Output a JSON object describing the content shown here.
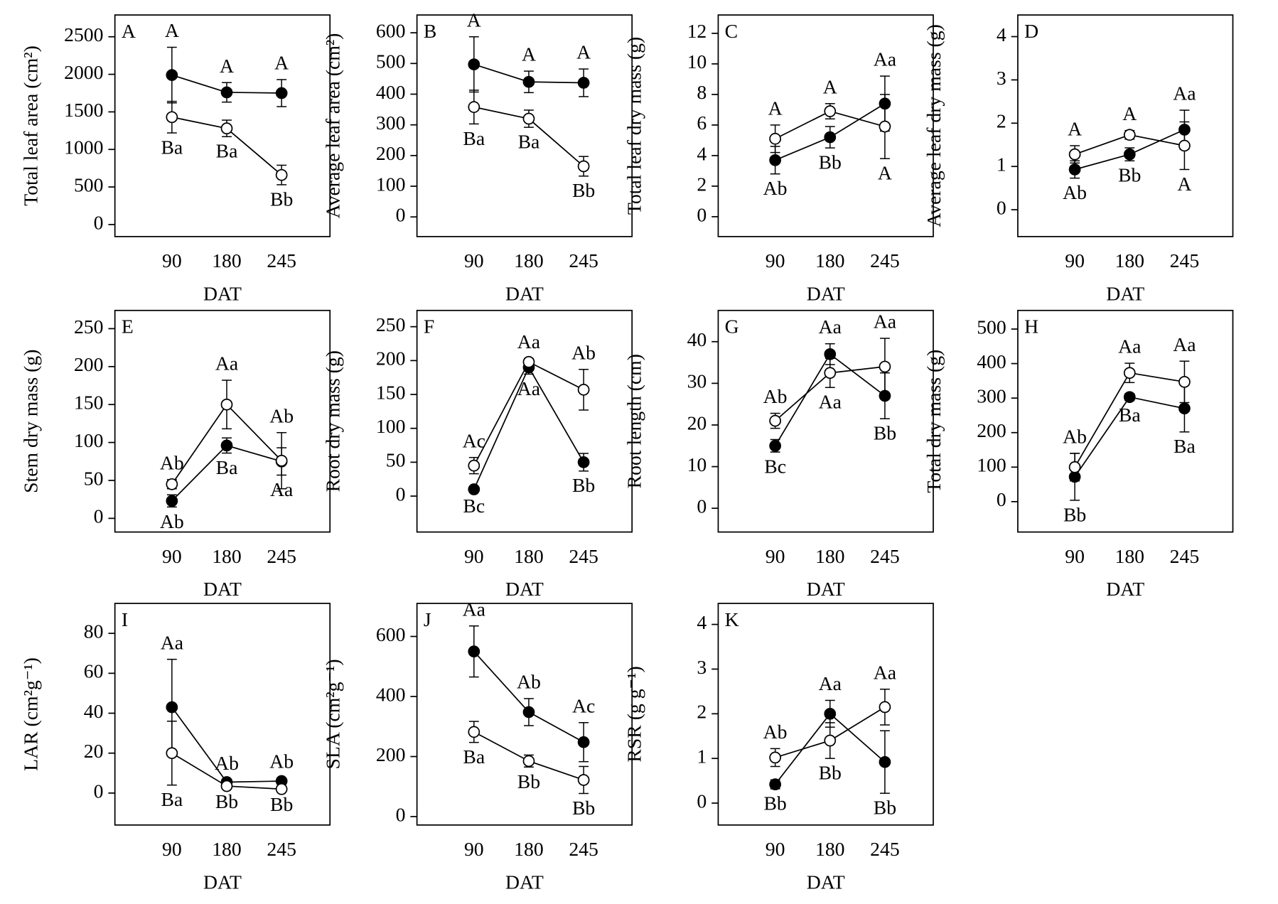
{
  "chart_data": [
    {
      "type": "line",
      "panel": "A",
      "ylabel": "Total leaf area (cm²)",
      "xlabel": "DAT",
      "categories": [
        "90",
        "180",
        "245"
      ],
      "ylim": [
        -160,
        2790
      ],
      "yticks": [
        0,
        500,
        1000,
        1500,
        2000,
        2500
      ],
      "series": [
        {
          "color": "#000000",
          "marker_fill": "#000000",
          "values": [
            1990,
            1760,
            1750
          ],
          "errors": [
            370,
            130,
            180
          ],
          "labels": [
            "A",
            "A",
            "A"
          ]
        },
        {
          "color": "#000000",
          "marker_fill": "#ffffff",
          "values": [
            1430,
            1280,
            660
          ],
          "errors": [
            210,
            110,
            130
          ],
          "labels": [
            "Ba",
            "Ba",
            "Bb"
          ]
        }
      ]
    },
    {
      "type": "line",
      "panel": "B",
      "ylabel": "Average leaf area (cm²)",
      "xlabel": "DAT",
      "categories": [
        "90",
        "180",
        "245"
      ],
      "ylim": [
        -64,
        658
      ],
      "yticks": [
        0,
        100,
        200,
        300,
        400,
        500,
        600
      ],
      "series": [
        {
          "color": "#000000",
          "marker_fill": "#000000",
          "values": [
            497,
            440,
            437
          ],
          "errors": [
            90,
            35,
            45
          ],
          "labels": [
            "A",
            "A",
            "A"
          ]
        },
        {
          "color": "#000000",
          "marker_fill": "#ffffff",
          "values": [
            358,
            320,
            165
          ],
          "errors": [
            55,
            28,
            32
          ],
          "labels": [
            "Ba",
            "Ba",
            "Bb"
          ]
        }
      ]
    },
    {
      "type": "line",
      "panel": "C",
      "ylabel": "Total leaf dry mass (g)",
      "xlabel": "DAT",
      "categories": [
        "90",
        "180",
        "245"
      ],
      "ylim": [
        -1.3,
        13.2
      ],
      "yticks": [
        0,
        2,
        4,
        6,
        8,
        10,
        12
      ],
      "series": [
        {
          "color": "#000000",
          "marker_fill": "#000000",
          "values": [
            3.7,
            5.2,
            7.4
          ],
          "errors": [
            0.9,
            0.7,
            1.8
          ],
          "labels": [
            "Ab",
            "Bb",
            "Aa"
          ]
        },
        {
          "color": "#000000",
          "marker_fill": "#ffffff",
          "values": [
            5.1,
            6.9,
            5.9
          ],
          "errors": [
            0.9,
            0.5,
            2.1
          ],
          "labels": [
            "A",
            "A",
            "A"
          ]
        }
      ]
    },
    {
      "type": "line",
      "panel": "D",
      "ylabel": "Average leaf dry mass (g)",
      "xlabel": "DAT",
      "categories": [
        "90",
        "180",
        "245"
      ],
      "ylim": [
        -0.62,
        4.5
      ],
      "yticks": [
        0,
        1,
        2,
        3,
        4
      ],
      "series": [
        {
          "color": "#000000",
          "marker_fill": "#000000",
          "values": [
            0.93,
            1.28,
            1.85
          ],
          "errors": [
            0.2,
            0.15,
            0.45
          ],
          "labels": [
            "Ab",
            "Bb",
            "Aa"
          ]
        },
        {
          "color": "#000000",
          "marker_fill": "#ffffff",
          "values": [
            1.28,
            1.73,
            1.48
          ],
          "errors": [
            0.2,
            0.1,
            0.55
          ],
          "labels": [
            "A",
            "A",
            "A"
          ]
        }
      ]
    },
    {
      "type": "line",
      "panel": "E",
      "ylabel": "Stem dry mass (g)",
      "xlabel": "DAT",
      "categories": [
        "90",
        "180",
        "245"
      ],
      "ylim": [
        -18,
        274
      ],
      "yticks": [
        0,
        50,
        100,
        150,
        200,
        250
      ],
      "series": [
        {
          "color": "#000000",
          "marker_fill": "#000000",
          "values": [
            23,
            96,
            75
          ],
          "errors": [
            8,
            10,
            18
          ],
          "labels": [
            "Ab",
            "Ba",
            "Aa"
          ]
        },
        {
          "color": "#000000",
          "marker_fill": "#ffffff",
          "values": [
            45,
            150,
            76
          ],
          "errors": [
            6,
            32,
            37
          ],
          "labels": [
            "Ab",
            "Aa",
            "Ab"
          ]
        }
      ]
    },
    {
      "type": "line",
      "panel": "F",
      "ylabel": "Root dry mass (g)",
      "xlabel": "DAT",
      "categories": [
        "90",
        "180",
        "245"
      ],
      "ylim": [
        -53,
        274
      ],
      "yticks": [
        0,
        50,
        100,
        150,
        200,
        250
      ],
      "series": [
        {
          "color": "#000000",
          "marker_fill": "#000000",
          "values": [
            10,
            190,
            50
          ],
          "errors": [
            3,
            10,
            13
          ],
          "labels": [
            "Bc",
            "Aa",
            "Bb"
          ]
        },
        {
          "color": "#000000",
          "marker_fill": "#ffffff",
          "values": [
            45,
            198,
            157
          ],
          "errors": [
            12,
            5,
            30
          ],
          "labels": [
            "Ac",
            "Aa",
            "Ab"
          ]
        }
      ]
    },
    {
      "type": "line",
      "panel": "G",
      "ylabel": "Root length (cm)",
      "xlabel": "DAT",
      "categories": [
        "90",
        "180",
        "245"
      ],
      "ylim": [
        -5.7,
        47.5
      ],
      "yticks": [
        0,
        10,
        20,
        30,
        40
      ],
      "series": [
        {
          "color": "#000000",
          "marker_fill": "#000000",
          "values": [
            15,
            37,
            27
          ],
          "errors": [
            1.5,
            2.5,
            5.5
          ],
          "labels": [
            "Bc",
            "Aa",
            "Bb"
          ]
        },
        {
          "color": "#000000",
          "marker_fill": "#ffffff",
          "values": [
            21,
            32.5,
            34
          ],
          "errors": [
            1.8,
            3.5,
            6.8
          ],
          "labels": [
            "Ab",
            "Aa",
            "Aa"
          ]
        }
      ]
    },
    {
      "type": "line",
      "panel": "H",
      "ylabel": "Total dry mass (g)",
      "xlabel": "DAT",
      "categories": [
        "90",
        "180",
        "245"
      ],
      "ylim": [
        -88,
        554
      ],
      "yticks": [
        0,
        100,
        200,
        300,
        400,
        500
      ],
      "series": [
        {
          "color": "#000000",
          "marker_fill": "#000000",
          "values": [
            72,
            303,
            270
          ],
          "errors": [
            68,
            10,
            68
          ],
          "labels": [
            "Bb",
            "Ba",
            "Ba"
          ]
        },
        {
          "color": "#000000",
          "marker_fill": "#ffffff",
          "values": [
            100,
            373,
            347
          ],
          "errors": [
            40,
            28,
            60
          ],
          "labels": [
            "Ab",
            "Aa",
            "Aa"
          ]
        }
      ]
    },
    {
      "type": "line",
      "panel": "I",
      "ylabel": "LAR (cm²g⁻¹)",
      "xlabel": "DAT",
      "categories": [
        "90",
        "180",
        "245"
      ],
      "ylim": [
        -16,
        95
      ],
      "yticks": [
        0,
        20,
        40,
        60,
        80
      ],
      "series": [
        {
          "color": "#000000",
          "marker_fill": "#000000",
          "values": [
            43,
            5.5,
            6
          ],
          "errors": [
            24,
            1,
            1.5
          ],
          "labels": [
            "Aa",
            "Ab",
            "Ab"
          ]
        },
        {
          "color": "#000000",
          "marker_fill": "#ffffff",
          "values": [
            20,
            3.5,
            2
          ],
          "errors": [
            16,
            0.5,
            0.5
          ],
          "labels": [
            "Ba",
            "Bb",
            "Bb"
          ]
        }
      ]
    },
    {
      "type": "line",
      "panel": "J",
      "ylabel": "SLA (cm²g⁻¹)",
      "xlabel": "DAT",
      "categories": [
        "90",
        "180",
        "245"
      ],
      "ylim": [
        -28,
        710
      ],
      "yticks": [
        0,
        200,
        400,
        600
      ],
      "series": [
        {
          "color": "#000000",
          "marker_fill": "#000000",
          "values": [
            550,
            348,
            248
          ],
          "errors": [
            85,
            45,
            65
          ],
          "labels": [
            "Aa",
            "Ab",
            "Ac"
          ]
        },
        {
          "color": "#000000",
          "marker_fill": "#ffffff",
          "values": [
            282,
            185,
            122
          ],
          "errors": [
            35,
            20,
            45
          ],
          "labels": [
            "Ba",
            "Bb",
            "Bb"
          ]
        }
      ]
    },
    {
      "type": "line",
      "panel": "K",
      "ylabel": "RSR  (g g⁻¹)",
      "xlabel": "DAT",
      "categories": [
        "90",
        "180",
        "245"
      ],
      "ylim": [
        -0.49,
        4.47
      ],
      "yticks": [
        0,
        1,
        2,
        3,
        4
      ],
      "series": [
        {
          "color": "#000000",
          "marker_fill": "#000000",
          "values": [
            0.42,
            2.0,
            0.92
          ],
          "errors": [
            0.1,
            0.3,
            0.7
          ],
          "labels": [
            "Bb",
            "Aa",
            "Bb"
          ]
        },
        {
          "color": "#000000",
          "marker_fill": "#ffffff",
          "values": [
            1.02,
            1.4,
            2.15
          ],
          "errors": [
            0.2,
            0.4,
            0.4
          ],
          "labels": [
            "Ab",
            "Bb",
            "Aa"
          ]
        }
      ]
    }
  ]
}
